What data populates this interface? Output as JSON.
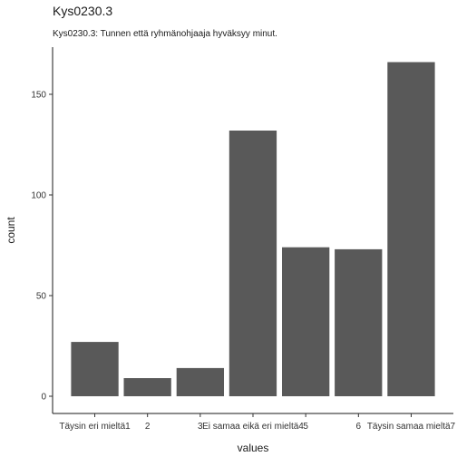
{
  "header": {
    "title": "Kys0230.3",
    "subtitle": "Kys0230.3: Tunnen että ryhmänohjaaja hyväksyy minut."
  },
  "chart_data": {
    "type": "bar",
    "title": "Kys0230.3",
    "subtitle": "Kys0230.3: Tunnen että ryhmänohjaaja hyväksyy minut.",
    "xlabel": "values",
    "ylabel": "count",
    "categories": [
      "Täysin eri mieltä1",
      "2",
      "3",
      "Ei samaa eikä eri mieltä4",
      "5",
      "6",
      "Täysin samaa mieltä7"
    ],
    "values": [
      27,
      9,
      14,
      132,
      74,
      73,
      166
    ],
    "ylim": [
      0,
      170
    ],
    "yticks": [
      0,
      50,
      100,
      150
    ],
    "bar_color": "#595959",
    "grid": false
  }
}
